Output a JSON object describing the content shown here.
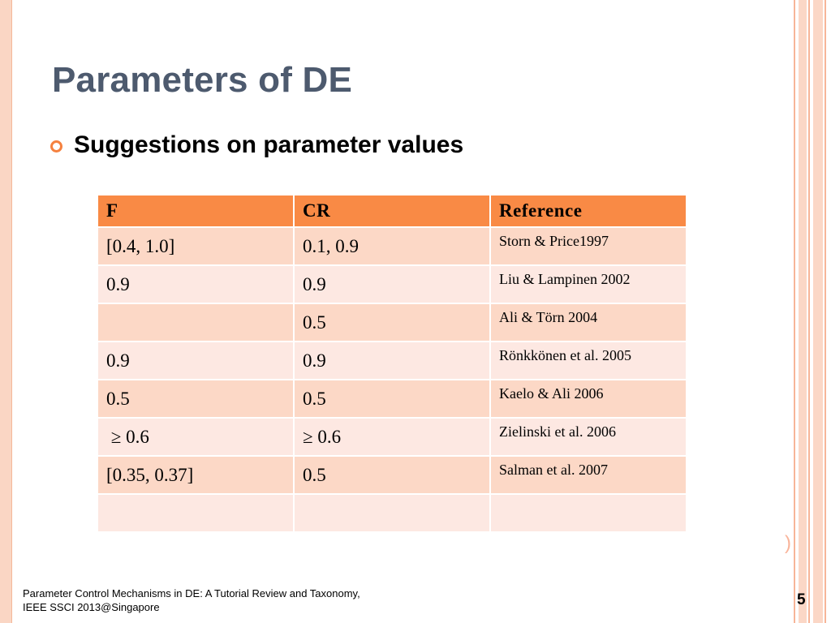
{
  "slide": {
    "title": "Parameters of DE",
    "bullet": "Suggestions on parameter values",
    "footer_line1": "Parameter Control Mechanisms in DE: A Tutorial Review and Taxonomy,",
    "footer_line2": "IEEE SSCI 2013@Singapore",
    "page_number": "5",
    "stray_mark": ")"
  },
  "table": {
    "headers": [
      "F",
      "CR",
      "Reference"
    ],
    "rows": [
      [
        "[0.4, 1.0]",
        "0.1, 0.9",
        "Storn & Price1997"
      ],
      [
        "0.9",
        "0.9",
        "Liu & Lampinen 2002"
      ],
      [
        "",
        "0.5",
        "Ali & Törn 2004"
      ],
      [
        "0.9",
        "0.9",
        "Rönkkönen et al. 2005"
      ],
      [
        "0.5",
        "0.5",
        "Kaelo & Ali 2006"
      ],
      [
        " ≥ 0.6",
        "≥ 0.6",
        "Zielinski et al. 2006"
      ],
      [
        "[0.35, 0.37]",
        "0.5",
        "Salman et al. 2007"
      ],
      [
        "",
        "",
        ""
      ]
    ]
  },
  "colors": {
    "title": "#4d5a6e",
    "accent": "#f5813f",
    "header_fill": "#f98a45",
    "row_odd": "#fcd8c6",
    "row_even": "#fde8e2",
    "border_stripe": "#fbd7c6"
  },
  "icons": {
    "bullet": "circle-bullet-icon"
  }
}
